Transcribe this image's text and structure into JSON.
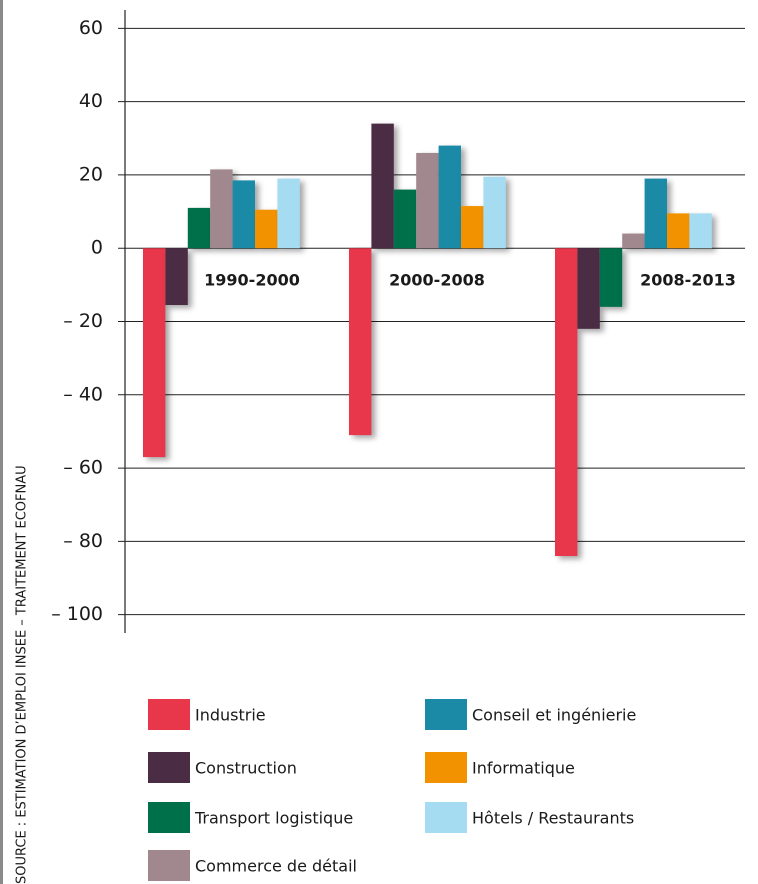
{
  "chart_data": {
    "type": "bar",
    "source": "SOURCE : ESTIMATION D’EMPLOI INSEE – TRAITEMENT ECOFNAU",
    "categories": [
      "1990-2000",
      "2000-2008",
      "2008-2013"
    ],
    "series": [
      {
        "name": "Industrie",
        "color": "#e8374a",
        "values": [
          -57,
          -51,
          -84
        ]
      },
      {
        "name": "Construction",
        "color": "#4a2d45",
        "values": [
          -15.5,
          34,
          -22
        ]
      },
      {
        "name": "Transport logistique",
        "color": "#00704a",
        "values": [
          11,
          16,
          -16
        ]
      },
      {
        "name": "Commerce de détail",
        "color": "#a1888f",
        "values": [
          21.5,
          26,
          4
        ]
      },
      {
        "name": "Conseil et ingénierie",
        "color": "#1a8aa6",
        "values": [
          18.5,
          28,
          19
        ]
      },
      {
        "name": "Informatique",
        "color": "#f39200",
        "values": [
          10.5,
          11.5,
          9.5
        ]
      },
      {
        "name": "Hôtels / Restaurants",
        "color": "#a6dcf2",
        "values": [
          19,
          19.5,
          9.5
        ]
      }
    ],
    "ylim": [
      -105,
      65
    ],
    "yticks": [
      60,
      40,
      20,
      0,
      {
        "value": -20,
        "label": "– 20"
      },
      {
        "value": -40,
        "label": "– 40"
      },
      {
        "value": -60,
        "label": "– 60"
      },
      {
        "value": -80,
        "label": "– 80"
      },
      {
        "value": -100,
        "label": "– 100"
      }
    ],
    "grid": true
  }
}
